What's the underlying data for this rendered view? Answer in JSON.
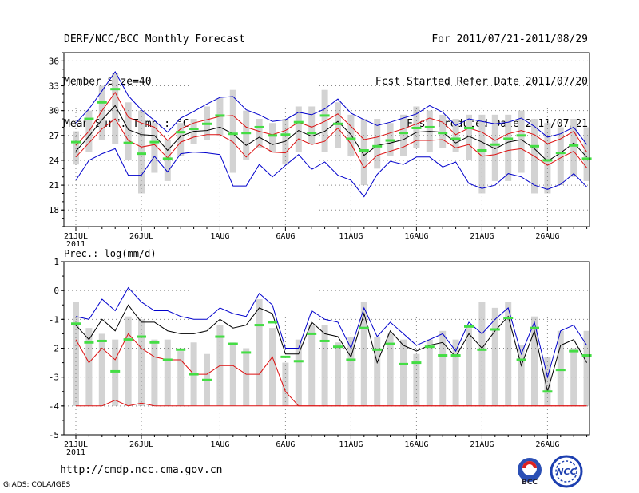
{
  "header": {
    "title": "DERF/NCC/BCC Monthly Forecast",
    "member_size": "Member Size=40",
    "variable": "Mean Surf. Temp.: °C",
    "period": "For 2011/07/21-2011/08/29",
    "start_ref": "Fcst Started Refer Date 2011/07/20",
    "produced": "Fcst Produced Date 2011/07/21"
  },
  "footer": {
    "url": "http://cmdp.ncc.cma.gov.cn",
    "credit": "GrADS: COLA/IGES",
    "logo_bcc": "BCC",
    "logo_ncc": "NCC"
  },
  "colors": {
    "gray_bar": "#d3d3d3",
    "obs_green": "#44dd44",
    "mean_line": "#000000",
    "inner_line": "#dd1111",
    "outer_line": "#0000cc",
    "grid": "#888888"
  },
  "chart_data": [
    {
      "type": "line",
      "title": "Mean Surf. Temp.: °C",
      "x": [
        "21JUL",
        "22JUL",
        "23JUL",
        "24JUL",
        "25JUL",
        "26JUL",
        "27JUL",
        "28JUL",
        "29JUL",
        "30JUL",
        "31JUL",
        "1AUG",
        "2AUG",
        "3AUG",
        "4AUG",
        "5AUG",
        "6AUG",
        "7AUG",
        "8AUG",
        "9AUG",
        "10AUG",
        "11AUG",
        "12AUG",
        "13AUG",
        "14AUG",
        "15AUG",
        "16AUG",
        "17AUG",
        "18AUG",
        "19AUG",
        "20AUG",
        "21AUG",
        "22AUG",
        "23AUG",
        "24AUG",
        "25AUG",
        "26AUG",
        "27AUG",
        "28AUG",
        "29AUG"
      ],
      "x_tick_labels": [
        "21JUL",
        "26JUL",
        "1AUG",
        "6AUG",
        "11AUG",
        "16AUG",
        "21AUG",
        "26AUG"
      ],
      "x_tick_index": [
        0,
        5,
        11,
        16,
        21,
        26,
        31,
        36
      ],
      "year_label": "2011",
      "ylim": [
        16,
        37
      ],
      "yticks": [
        18,
        21,
        24,
        27,
        30,
        33,
        36
      ],
      "series": [
        {
          "name": "ensemble max",
          "color": "blue",
          "values": [
            28.5,
            30.2,
            32.4,
            34.7,
            31.8,
            30.1,
            28.8,
            27.4,
            29.1,
            29.9,
            30.8,
            31.6,
            31.7,
            30.1,
            29.5,
            28.7,
            28.9,
            29.8,
            29.5,
            30.2,
            31.4,
            29.7,
            28.9,
            28.2,
            28.6,
            29.1,
            29.6,
            30.6,
            29.8,
            28.2,
            29.0,
            28.7,
            28.4,
            28.6,
            29.1,
            28.1,
            26.8,
            27.2,
            28.0,
            25.9
          ]
        },
        {
          "name": "upper spread",
          "color": "red",
          "values": [
            25.8,
            27.5,
            30.0,
            32.2,
            29.2,
            28.5,
            28.0,
            26.4,
            27.8,
            28.5,
            28.9,
            29.3,
            29.4,
            28.0,
            27.5,
            27.1,
            27.6,
            28.6,
            28.0,
            28.7,
            29.6,
            28.1,
            26.5,
            26.8,
            27.3,
            27.8,
            28.4,
            29.1,
            28.6,
            27.1,
            27.9,
            27.4,
            26.4,
            27.2,
            27.6,
            27.1,
            26.0,
            26.6,
            27.5,
            25.0
          ]
        },
        {
          "name": "ensemble mean",
          "color": "black",
          "values": [
            25.1,
            26.9,
            28.9,
            30.6,
            27.7,
            27.1,
            27.0,
            25.2,
            26.9,
            27.5,
            27.6,
            28.0,
            27.2,
            25.8,
            26.8,
            25.9,
            26.3,
            27.6,
            26.9,
            27.5,
            28.7,
            27.1,
            24.6,
            25.8,
            26.1,
            26.5,
            27.4,
            27.5,
            27.4,
            26.1,
            26.9,
            26.2,
            25.4,
            26.2,
            26.5,
            25.4,
            23.9,
            24.9,
            26.1,
            24.4
          ]
        },
        {
          "name": "lower spread",
          "color": "red",
          "values": [
            24.4,
            26.1,
            27.8,
            29.0,
            26.4,
            25.6,
            25.9,
            24.3,
            26.2,
            26.8,
            27.1,
            27.1,
            26.2,
            24.4,
            25.9,
            25.0,
            24.9,
            26.6,
            25.9,
            26.3,
            27.9,
            26.0,
            23.1,
            24.6,
            25.1,
            25.6,
            26.4,
            26.4,
            26.5,
            25.5,
            25.9,
            24.5,
            24.7,
            25.2,
            25.4,
            24.5,
            23.4,
            24.3,
            25.1,
            23.1
          ]
        },
        {
          "name": "ensemble min",
          "color": "blue",
          "values": [
            21.6,
            24.0,
            24.8,
            25.4,
            22.2,
            22.2,
            24.5,
            22.6,
            24.8,
            25.0,
            24.9,
            24.7,
            20.9,
            20.9,
            23.5,
            22.0,
            23.4,
            24.7,
            22.9,
            23.8,
            22.2,
            21.6,
            19.6,
            22.3,
            23.9,
            23.5,
            24.4,
            24.4,
            23.2,
            23.8,
            21.2,
            20.6,
            21.0,
            22.4,
            22.0,
            21.0,
            20.5,
            21.1,
            22.4,
            20.8
          ]
        }
      ],
      "bars": {
        "name": "observed range",
        "low": [
          23.5,
          25.0,
          26.5,
          26.0,
          24.0,
          20.0,
          22.5,
          21.5,
          24.5,
          26.0,
          26.5,
          27.0,
          22.5,
          24.0,
          25.5,
          25.0,
          23.5,
          25.0,
          26.0,
          25.0,
          25.5,
          24.5,
          21.0,
          23.0,
          24.5,
          24.5,
          25.5,
          25.0,
          25.5,
          25.0,
          24.0,
          20.0,
          21.5,
          21.5,
          22.5,
          20.0,
          20.0,
          21.0,
          22.0,
          21.5
        ],
        "high": [
          27.5,
          30.0,
          33.0,
          34.5,
          31.0,
          30.0,
          28.5,
          26.5,
          28.5,
          29.0,
          30.5,
          31.5,
          32.5,
          30.0,
          29.0,
          28.5,
          29.0,
          30.5,
          30.5,
          32.5,
          31.0,
          29.5,
          29.0,
          29.0,
          28.5,
          29.5,
          30.5,
          30.0,
          29.5,
          29.0,
          29.5,
          29.5,
          29.5,
          29.5,
          30.0,
          29.0,
          28.5,
          28.0,
          29.0,
          28.0
        ]
      },
      "markers": {
        "name": "observed",
        "color": "green",
        "values": [
          26.2,
          29.0,
          31.0,
          32.6,
          26.1,
          24.8,
          26.2,
          24.2,
          27.4,
          27.8,
          28.4,
          29.4,
          27.2,
          27.3,
          28.0,
          27.0,
          27.1,
          28.6,
          27.3,
          29.4,
          28.4,
          26.6,
          25.2,
          25.7,
          26.4,
          27.3,
          27.9,
          28.0,
          27.3,
          26.6,
          27.9,
          25.2,
          25.9,
          26.6,
          27.0,
          25.7,
          24.0,
          24.9,
          25.8,
          24.2
        ]
      }
    },
    {
      "type": "line",
      "title": "Prec.: log(mm/d)",
      "x_tick_labels": [
        "21JUL",
        "26JUL",
        "1AUG",
        "6AUG",
        "11AUG",
        "16AUG",
        "21AUG",
        "26AUG"
      ],
      "x_tick_index": [
        0,
        5,
        11,
        16,
        21,
        26,
        31,
        36
      ],
      "year_label": "2011",
      "ylim": [
        -5,
        1
      ],
      "yticks": [
        -5,
        -4,
        -3,
        -2,
        -1,
        0,
        1
      ],
      "series": [
        {
          "name": "ensemble max",
          "color": "blue",
          "values": [
            -0.9,
            -1.0,
            -0.3,
            -0.7,
            0.1,
            -0.4,
            -0.7,
            -0.7,
            -0.9,
            -1.0,
            -1.0,
            -0.6,
            -0.8,
            -0.9,
            -0.1,
            -0.5,
            -2.0,
            -2.0,
            -0.7,
            -1.0,
            -1.1,
            -2.0,
            -0.6,
            -1.6,
            -1.1,
            -1.5,
            -1.9,
            -1.7,
            -1.5,
            -2.1,
            -1.1,
            -1.5,
            -1.0,
            -0.6,
            -2.2,
            -1.1,
            -3.0,
            -1.4,
            -1.2,
            -1.9
          ]
        },
        {
          "name": "ensemble mean",
          "color": "black",
          "values": [
            -1.2,
            -1.7,
            -1.0,
            -1.4,
            -0.5,
            -1.1,
            -1.1,
            -1.4,
            -1.5,
            -1.5,
            -1.4,
            -1.0,
            -1.3,
            -1.2,
            -0.6,
            -0.8,
            -2.2,
            -2.2,
            -1.1,
            -1.5,
            -1.6,
            -2.3,
            -0.8,
            -2.5,
            -1.4,
            -1.9,
            -2.1,
            -1.9,
            -1.8,
            -2.3,
            -1.5,
            -2.0,
            -1.4,
            -0.9,
            -2.6,
            -1.4,
            -3.5,
            -1.9,
            -1.7,
            -2.5
          ]
        },
        {
          "name": "ensemble low",
          "color": "red",
          "values": [
            -1.7,
            -2.5,
            -2.0,
            -2.4,
            -1.5,
            -2.0,
            -2.3,
            -2.4,
            -2.4,
            -2.9,
            -2.9,
            -2.6,
            -2.6,
            -2.9,
            -2.9,
            -2.3,
            -3.5,
            -4.0,
            -4.0,
            -4.0,
            -4.0,
            -4.0,
            -4.0,
            -4.0,
            -4.0,
            -4.0,
            -4.0,
            -4.0,
            -4.0,
            -4.0,
            -4.0,
            -4.0,
            -4.0,
            -4.0,
            -4.0,
            -4.0,
            -4.0,
            -4.0,
            -4.0,
            -4.0
          ]
        },
        {
          "name": "ensemble min",
          "color": "red",
          "values": [
            -4.0,
            -4.0,
            -4.0,
            -3.8,
            -4.0,
            -3.9,
            -4.0,
            -4.0,
            -4.0,
            -4.0,
            -4.0,
            -4.0,
            -4.0,
            -4.0,
            -4.0,
            -4.0,
            -4.0,
            -4.0,
            -4.0,
            -4.0,
            -4.0,
            -4.0,
            -4.0,
            -4.0,
            -4.0,
            -4.0,
            -4.0,
            -4.0,
            -4.0,
            -4.0,
            -4.0,
            -4.0,
            -4.0,
            -4.0,
            -4.0,
            -4.0,
            -4.0,
            -4.0,
            -4.0,
            -4.0
          ]
        }
      ],
      "bars": {
        "name": "observed range",
        "low": [
          -4,
          -4,
          -4,
          -4,
          -4,
          -4,
          -4,
          -4,
          -4,
          -4,
          -4,
          -4,
          -4,
          -4,
          -4,
          -4,
          -4,
          -4,
          -4,
          -4,
          -4,
          -4,
          -4,
          -4,
          -4,
          -4,
          -4,
          -4,
          -4,
          -4,
          -4,
          -4,
          -4,
          -4,
          -4,
          -4,
          -4,
          -4,
          -4,
          -4
        ],
        "high": [
          -0.4,
          -1.3,
          -1.5,
          -1.7,
          -0.9,
          -1.0,
          -1.7,
          -1.7,
          -2.1,
          -1.8,
          -2.2,
          -1.2,
          -1.8,
          -2.0,
          -0.3,
          -1.3,
          -2.5,
          -1.7,
          -1.2,
          -1.2,
          -1.8,
          -1.6,
          -0.4,
          -1.6,
          -1.5,
          -1.7,
          -2.2,
          -1.7,
          -1.4,
          -1.7,
          -1.3,
          -0.4,
          -0.6,
          -0.4,
          -1.9,
          -0.9,
          -2.3,
          -1.4,
          -2.0,
          -1.4
        ]
      },
      "markers": {
        "name": "observed",
        "color": "green",
        "values": [
          -1.15,
          -1.8,
          -1.75,
          -2.8,
          -1.7,
          -1.6,
          -1.8,
          -2.4,
          -2.05,
          -2.9,
          -3.1,
          -1.6,
          -1.85,
          -2.15,
          -1.2,
          -1.1,
          -2.3,
          -2.45,
          -1.5,
          -1.75,
          -1.95,
          -2.4,
          -1.3,
          -2.05,
          -1.85,
          -2.55,
          -2.5,
          -1.95,
          -2.25,
          -2.25,
          -1.25,
          -2.05,
          -1.35,
          -0.95,
          -2.4,
          -1.3,
          -3.5,
          -2.75,
          -2.1,
          -2.25
        ]
      }
    }
  ]
}
